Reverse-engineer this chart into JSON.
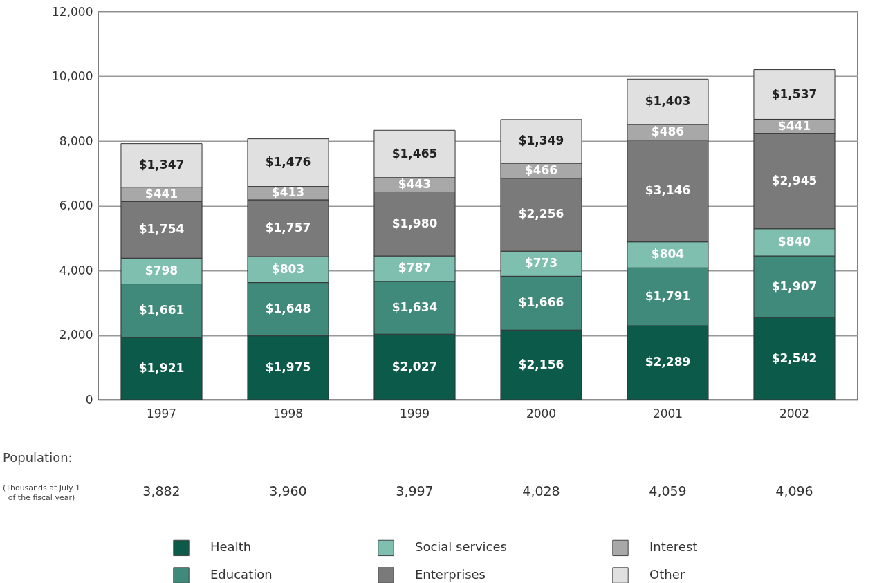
{
  "chart_data": {
    "type": "bar",
    "stacked": true,
    "categories": [
      "1997",
      "1998",
      "1999",
      "2000",
      "2001",
      "2002"
    ],
    "ylim": [
      0,
      12000
    ],
    "yticks": [
      {
        "value": 0,
        "label": "0"
      },
      {
        "value": 2000,
        "label": "2,000"
      },
      {
        "value": 4000,
        "label": "4,000"
      },
      {
        "value": 6000,
        "label": "6,000"
      },
      {
        "value": 8000,
        "label": "8,000"
      },
      {
        "value": 10000,
        "label": "10,000"
      },
      {
        "value": 12000,
        "label": "12,000"
      }
    ],
    "grid": "y",
    "legend": "bottom",
    "series": [
      {
        "name": "Health",
        "color": "#0b5a4a",
        "values": [
          1921,
          1975,
          2027,
          2156,
          2289,
          2542
        ],
        "value_labels": [
          "$1,921",
          "$1,975",
          "$2,027",
          "$2,156",
          "$2,289",
          "$2,542"
        ]
      },
      {
        "name": "Education",
        "color": "#3f8a7a",
        "values": [
          1661,
          1648,
          1634,
          1666,
          1791,
          1907
        ],
        "value_labels": [
          "$1,661",
          "$1,648",
          "$1,634",
          "$1,666",
          "$1,791",
          "$1,907"
        ]
      },
      {
        "name": "Social services",
        "color": "#7fbfb0",
        "values": [
          798,
          803,
          787,
          773,
          804,
          840
        ],
        "value_labels": [
          "$798",
          "$803",
          "$787",
          "$773",
          "$804",
          "$840"
        ]
      },
      {
        "name": "Enterprises",
        "color": "#7a7a7a",
        "values": [
          1754,
          1757,
          1980,
          2256,
          3146,
          2945
        ],
        "value_labels": [
          "$1,754",
          "$1,757",
          "$1,980",
          "$2,256",
          "$3,146",
          "$2,945"
        ]
      },
      {
        "name": "Interest",
        "color": "#a8a8a8",
        "values": [
          441,
          413,
          443,
          466,
          486,
          441
        ],
        "value_labels": [
          "$441",
          "$413",
          "$443",
          "$466",
          "$486",
          "$441"
        ]
      },
      {
        "name": "Other",
        "color": "#e0e0e0",
        "values": [
          1347,
          1476,
          1465,
          1349,
          1403,
          1537
        ],
        "value_labels": [
          "$1,347",
          "$1,476",
          "$1,465",
          "$1,349",
          "$1,403",
          "$1,537"
        ]
      }
    ],
    "annotations": [
      "Population:",
      "(Thousands at July 1 of the fiscal year)",
      "3,882",
      "3,960",
      "3,997",
      "4,028",
      "4,059",
      "4,096"
    ]
  }
}
